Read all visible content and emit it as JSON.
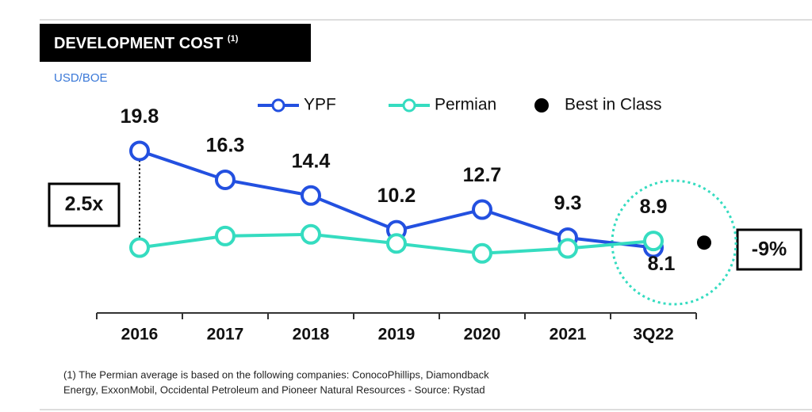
{
  "chart_data": {
    "type": "line",
    "title": "DEVELOPMENT COST",
    "title_note": "(1)",
    "y_label": "USD/BOE",
    "categories": [
      "2016",
      "2017",
      "2018",
      "2019",
      "2020",
      "2021",
      "3Q22"
    ],
    "series": [
      {
        "name": "YPF",
        "color": "#2350e0",
        "values": [
          19.8,
          16.3,
          14.4,
          10.2,
          12.7,
          9.3,
          8.1
        ],
        "labels_shown": [
          true,
          true,
          true,
          true,
          true,
          true,
          true
        ]
      },
      {
        "name": "Permian",
        "color": "#35dcc0",
        "values": [
          8.1,
          9.5,
          9.7,
          8.6,
          7.4,
          8.0,
          8.9
        ],
        "labels_shown": [
          false,
          false,
          false,
          false,
          false,
          false,
          true
        ]
      }
    ],
    "best_in_class": {
      "name": "Best in Class",
      "value": 8.7,
      "color": "#000000"
    },
    "ylim": [
      0,
      22
    ],
    "annotations": [
      "2.5x",
      "-9%"
    ],
    "footnote": [
      "(1) The Permian average is based on the following companies: ConocoPhillips, Diamondback",
      "Energy, ExxonMobil, Occidental Petroleum and Pioneer Natural Resources - Source: Rystad"
    ]
  }
}
